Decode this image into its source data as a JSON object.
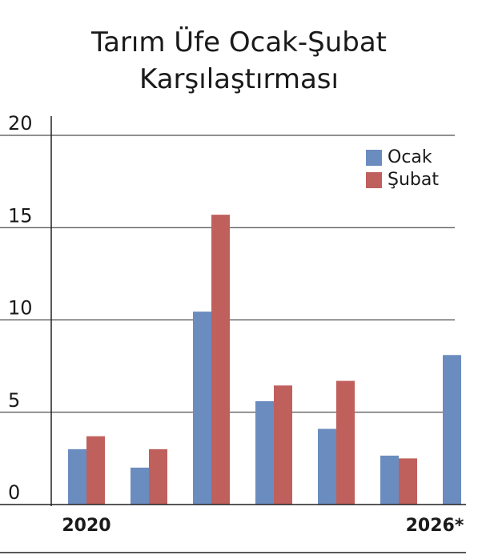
{
  "chart_data": {
    "type": "bar",
    "title": "Tarım Üfe Ocak-Şubat Karşılaştırması",
    "categories": [
      "2020",
      null,
      null,
      null,
      null,
      null,
      "2026*"
    ],
    "series": [
      {
        "name": "Ocak",
        "color": "#6b8cbf",
        "values": [
          3.0,
          2.0,
          10.45,
          5.6,
          4.1,
          2.65,
          8.1
        ]
      },
      {
        "name": "Şubat",
        "color": "#c0605c",
        "values": [
          3.7,
          3.0,
          15.7,
          6.45,
          6.7,
          2.5,
          null
        ]
      }
    ],
    "ylim": [
      0,
      20
    ],
    "yticks": [
      0,
      5,
      10,
      15,
      20
    ],
    "grid": true,
    "legend": "top-right"
  }
}
